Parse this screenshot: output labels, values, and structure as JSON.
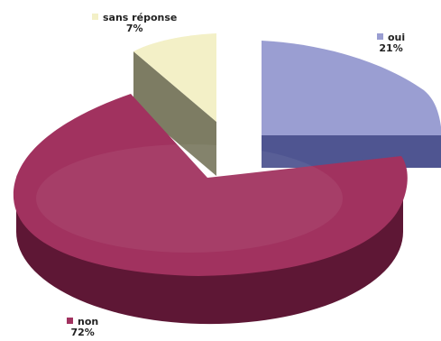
{
  "chart_data": {
    "type": "pie",
    "title": "",
    "slices": [
      {
        "label": "oui",
        "pct_label": "21%",
        "value": 21,
        "color": "#9a9ed2",
        "side": "#4f5591"
      },
      {
        "label": "non",
        "pct_label": "72%",
        "value": 72,
        "color": "#a1325f",
        "side": "#5e1735"
      },
      {
        "label": "sans réponse",
        "pct_label": "7%",
        "value": 7,
        "color": "#f3f0c7",
        "side": "#7d7c63"
      }
    ],
    "legend": "none"
  }
}
